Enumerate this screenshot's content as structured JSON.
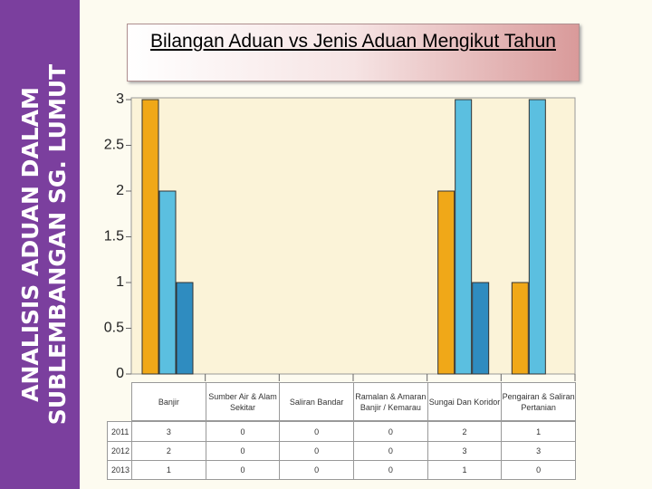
{
  "slide": {
    "side_title": [
      "ANALISIS ADUAN DALAM",
      "SUBLEMBANGAN SG. LUMUT"
    ]
  },
  "chart_data": {
    "type": "bar",
    "title": "Bilangan Aduan vs Jenis Aduan Mengikut Tahun",
    "categories": [
      "Banjir",
      "Sumber Air & Alam Sekitar",
      "Saliran Bandar",
      "Ramalan & Amaran Banjir / Kemarau",
      "Sungai Dan Koridor",
      "Pengairan & Saliran Pertanian"
    ],
    "series": [
      {
        "name": "2011",
        "color": "#f0a818",
        "values": [
          3,
          0,
          0,
          0,
          2,
          1
        ]
      },
      {
        "name": "2012",
        "color": "#5bbfe0",
        "values": [
          2,
          0,
          0,
          0,
          3,
          3
        ]
      },
      {
        "name": "2013",
        "color": "#2f8cc0",
        "values": [
          1,
          0,
          0,
          0,
          1,
          0
        ]
      }
    ],
    "ylim": [
      0,
      3
    ],
    "yticks": [
      0,
      0.5,
      1,
      1.5,
      2,
      2.5,
      3
    ],
    "grid": false
  }
}
